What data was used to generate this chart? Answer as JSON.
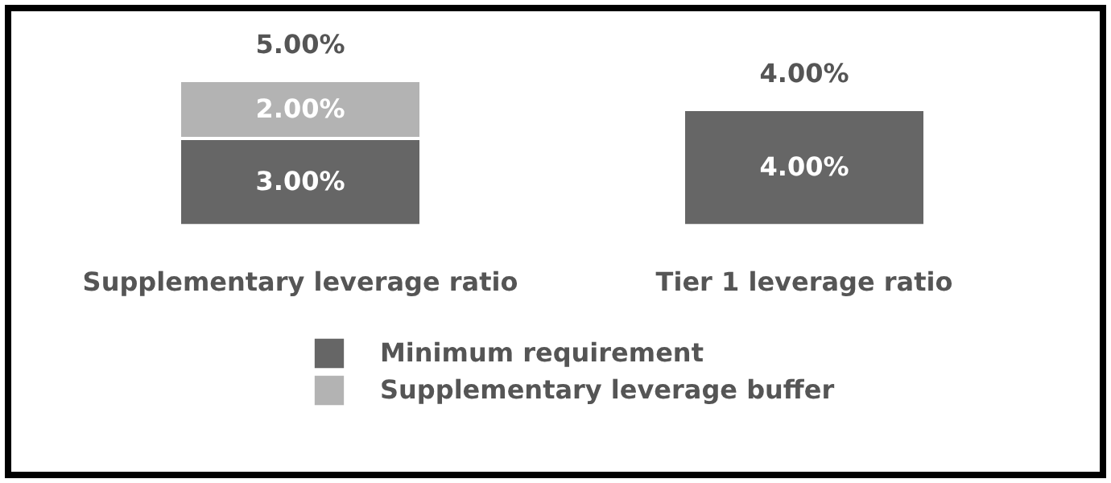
{
  "chart_data": {
    "type": "bar",
    "stacked": true,
    "categories": [
      "Supplementary leverage ratio",
      "Tier 1 leverage ratio"
    ],
    "series": [
      {
        "name": "Minimum requirement",
        "color": "#666666",
        "values": [
          3,
          4
        ],
        "value_labels": [
          "3.00%",
          "4.00%"
        ]
      },
      {
        "name": "Supplementary leverage buffer",
        "color": "#b3b3b3",
        "values": [
          2,
          null
        ],
        "value_labels": [
          "2.00%",
          null
        ]
      }
    ],
    "totals": [
      "5.00%",
      "4.00%"
    ],
    "legend": "bottom",
    "grid": false,
    "tick_labels": "x"
  }
}
